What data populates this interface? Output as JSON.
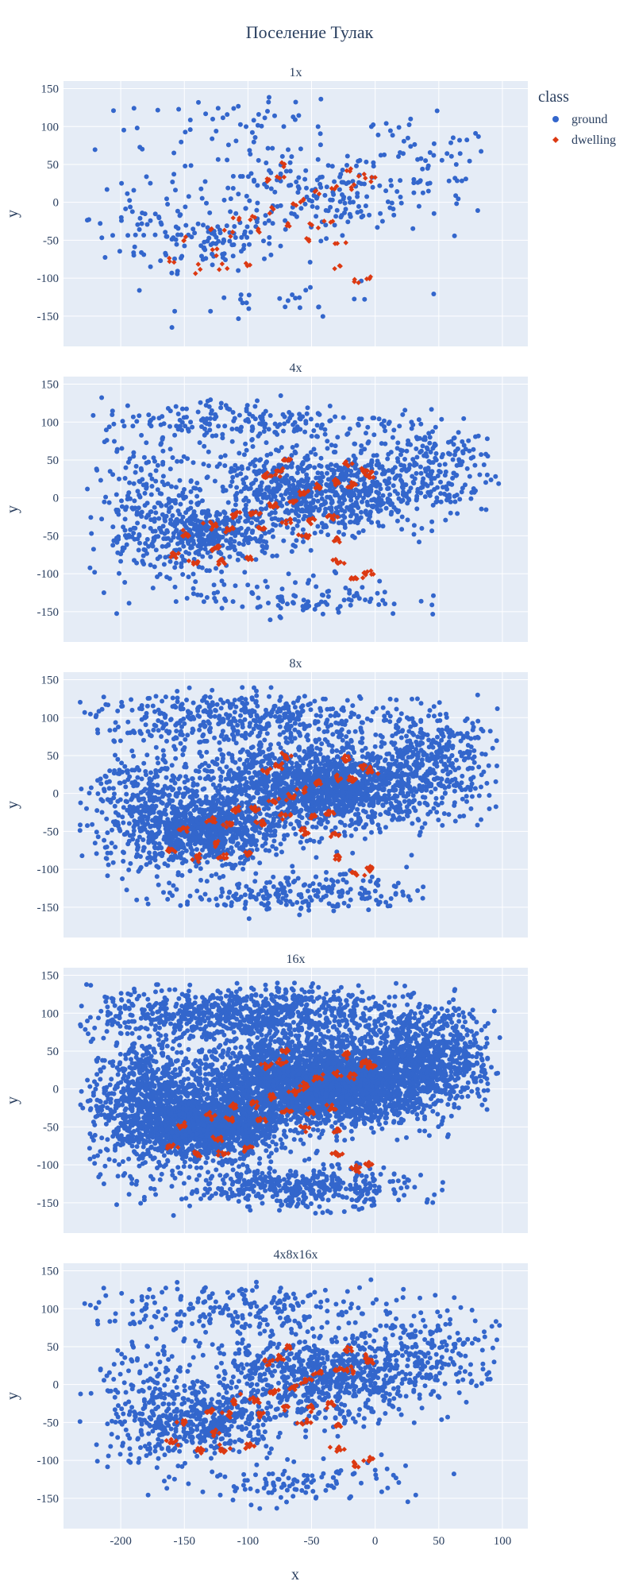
{
  "chart_data": {
    "type": "scatter",
    "title": "Поселение Тулак",
    "xlabel": "x",
    "ylabel": "y",
    "xlim": [
      -245,
      120
    ],
    "ylim": [
      -190,
      160
    ],
    "x_ticks": [
      -200,
      -150,
      -100,
      -50,
      0,
      50,
      100
    ],
    "y_ticks": [
      -150,
      -100,
      -50,
      0,
      50,
      100,
      150
    ],
    "grid": true,
    "legend": {
      "title": "class",
      "placement": "top-right",
      "entries": [
        {
          "name": "ground",
          "color": "#3366cc",
          "marker": "circle"
        },
        {
          "name": "dwelling",
          "color": "#dc3912",
          "marker": "diamond"
        }
      ]
    },
    "panels": [
      {
        "title": "1x",
        "density": 1
      },
      {
        "title": "4x",
        "density": 4
      },
      {
        "title": "8x",
        "density": 8
      },
      {
        "title": "16x",
        "density": 16
      },
      {
        "title": "4x8x16x",
        "density": 4
      }
    ],
    "dwelling_clusters": [
      [
        -70,
        50
      ],
      [
        -75,
        35
      ],
      [
        -85,
        30
      ],
      [
        -22,
        45
      ],
      [
        -8,
        35
      ],
      [
        -3,
        30
      ],
      [
        -30,
        20
      ],
      [
        -18,
        18
      ],
      [
        -45,
        15
      ],
      [
        -55,
        5
      ],
      [
        -65,
        -5
      ],
      [
        -80,
        -10
      ],
      [
        -95,
        -20
      ],
      [
        -110,
        -22
      ],
      [
        -130,
        -35
      ],
      [
        -150,
        -48
      ],
      [
        -125,
        -65
      ],
      [
        -140,
        -85
      ],
      [
        -160,
        -75
      ],
      [
        -35,
        -25
      ],
      [
        -50,
        -30
      ],
      [
        -70,
        -30
      ],
      [
        -90,
        -40
      ],
      [
        -30,
        -55
      ],
      [
        -55,
        -50
      ],
      [
        -30,
        -85
      ],
      [
        -15,
        -105
      ],
      [
        -5,
        -100
      ],
      [
        -120,
        -85
      ],
      [
        -100,
        -80
      ],
      [
        -115,
        -40
      ]
    ],
    "ground_regions": [
      {
        "center": [
          -70,
          10
        ],
        "spread": [
          70,
          55
        ],
        "weight": 4
      },
      {
        "center": [
          -130,
          -50
        ],
        "spread": [
          45,
          35
        ],
        "weight": 3
      },
      {
        "center": [
          -20,
          5
        ],
        "spread": [
          55,
          45
        ],
        "weight": 3
      },
      {
        "center": [
          -100,
          100
        ],
        "spread": [
          110,
          30
        ],
        "weight": 2
      },
      {
        "center": [
          -180,
          -20
        ],
        "spread": [
          40,
          80
        ],
        "weight": 2
      },
      {
        "center": [
          40,
          40
        ],
        "spread": [
          50,
          60
        ],
        "weight": 2
      },
      {
        "center": [
          -60,
          -130
        ],
        "spread": [
          80,
          25
        ],
        "weight": 1
      }
    ]
  }
}
